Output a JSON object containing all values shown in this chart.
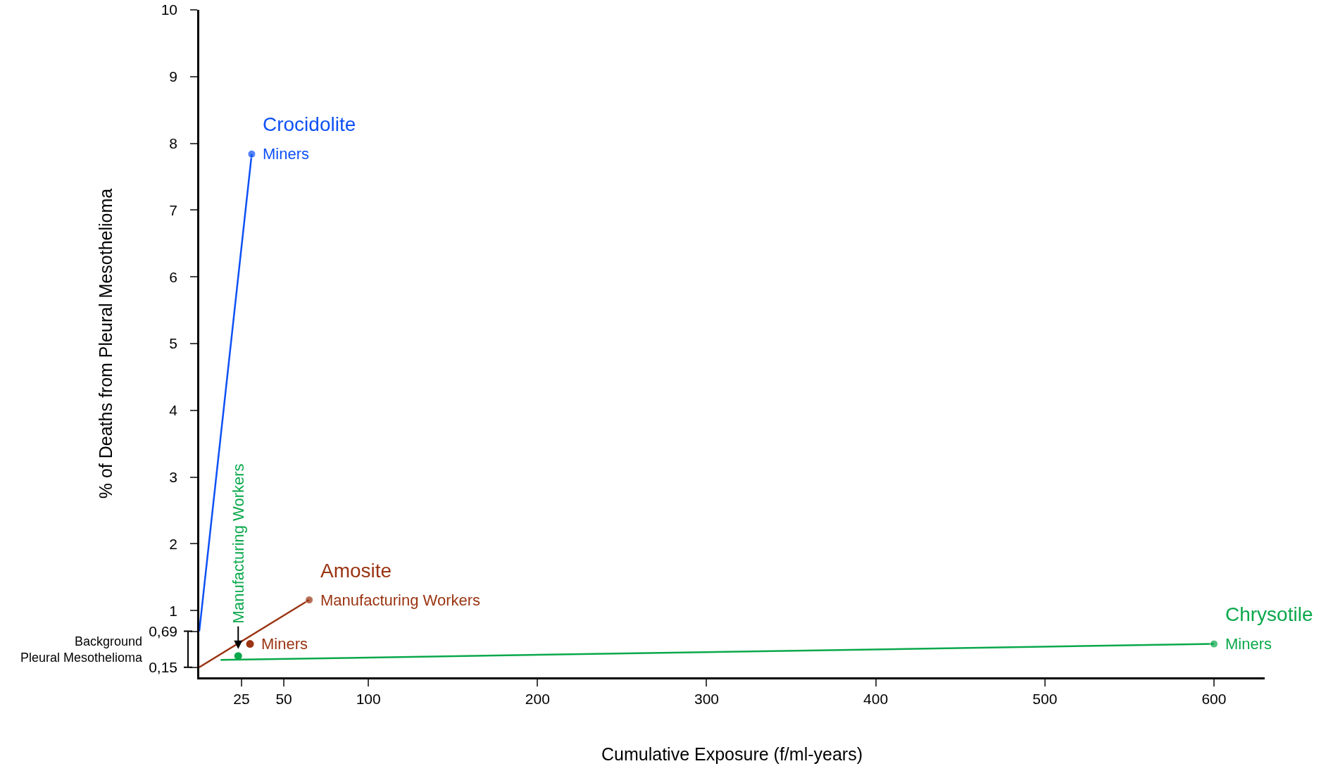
{
  "chart_data": {
    "type": "line",
    "xlabel": "Cumulative Exposure (f/ml-years)",
    "ylabel": "% of Deaths from Pleural Mesothelioma",
    "xlim": [
      0,
      630
    ],
    "xticks": [
      25,
      50,
      100,
      200,
      300,
      400,
      500,
      600
    ],
    "ylim": [
      0,
      10
    ],
    "yticks": [
      {
        "value": 0.15,
        "label": "0,15"
      },
      {
        "value": 0.69,
        "label": "0,69"
      },
      1,
      2,
      3,
      4,
      5,
      6,
      7,
      8,
      9,
      10
    ],
    "marker": "circle",
    "line_style": "solid",
    "grid": false,
    "legend": false,
    "series": [
      {
        "name": "Crocidolite",
        "color": "#0d50f5",
        "x": [
          0,
          31
        ],
        "values": [
          0.69,
          7.84
        ],
        "value_labels": [
          null,
          "Miners"
        ]
      },
      {
        "name": "Amosite",
        "color": "#9a3412",
        "x": [
          0,
          65
        ],
        "values": [
          0.15,
          1.16
        ],
        "value_labels": [
          null,
          "Manufacturing Workers"
        ]
      },
      {
        "type": "scatter",
        "color": "#9a3412",
        "x": [
          30
        ],
        "values": [
          0.5
        ],
        "value_labels": [
          "Miners"
        ]
      },
      {
        "name": "Chrysotile",
        "color": "#0aa84b",
        "x": [
          12.6,
          600
        ],
        "values": [
          0.26,
          0.5
        ],
        "value_labels": [
          null,
          "Miners"
        ]
      },
      {
        "type": "scatter",
        "color": "#0aa84b",
        "x": [
          23
        ],
        "values": [
          0.32
        ]
      }
    ],
    "annotations": [
      "Background\nPleural Mesothelioma",
      {
        "text": "Manufacturing Workers",
        "x": 23,
        "y": 0.32
      }
    ]
  }
}
